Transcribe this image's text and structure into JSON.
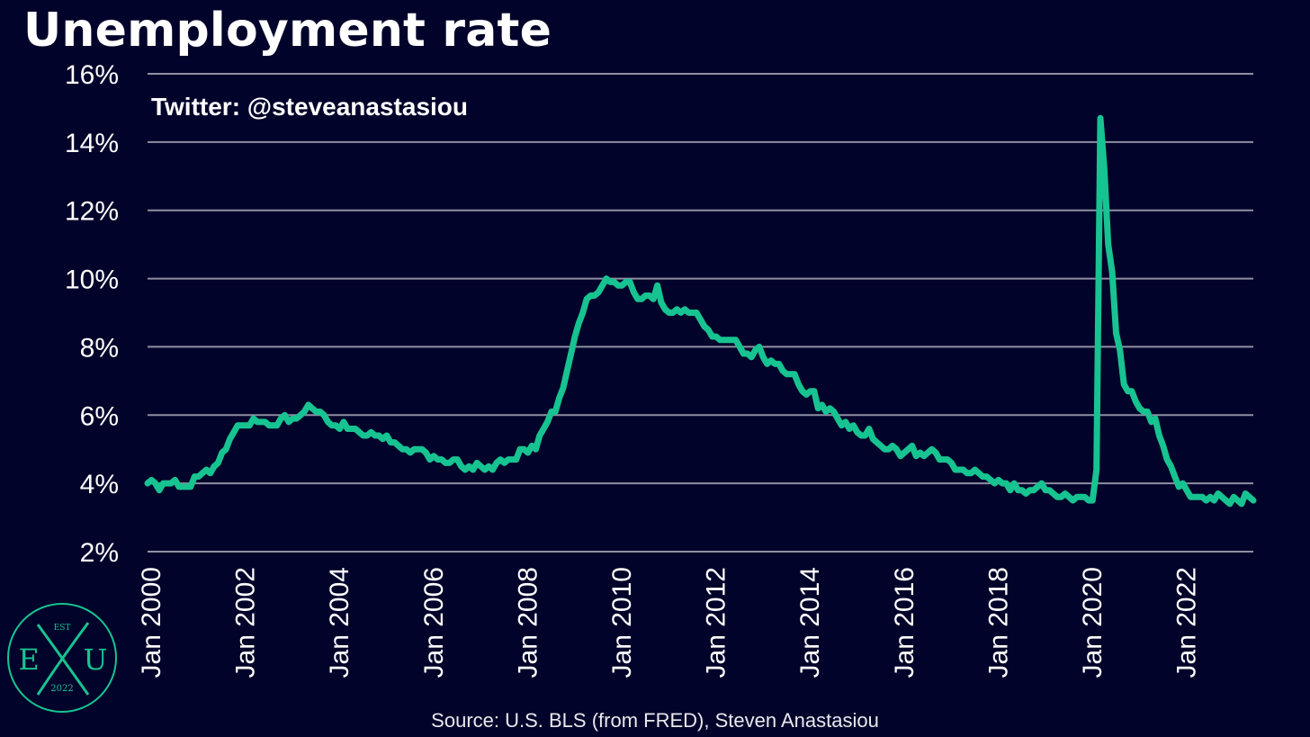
{
  "title": "Unemployment rate",
  "watermark": "Twitter: @steveanastasiou",
  "source": "Source: U.S. BLS (from FRED), Steven Anastasiou",
  "logo": {
    "top": "EST",
    "left": "E",
    "right": "U",
    "bottom": "2022",
    "color": "#17c391"
  },
  "colors": {
    "background": "#02032a",
    "line": "#17c391",
    "grid": "#8e8fa3",
    "text": "#ffffff"
  },
  "chart_data": {
    "type": "line",
    "title": "Unemployment rate",
    "xlabel": "",
    "ylabel": "",
    "x_range": [
      "Jan 2000",
      "Jun 2023"
    ],
    "ylim": [
      2,
      16
    ],
    "y_ticks": [
      "2%",
      "4%",
      "6%",
      "8%",
      "10%",
      "12%",
      "14%",
      "16%"
    ],
    "y_tick_values": [
      2,
      4,
      6,
      8,
      10,
      12,
      14,
      16
    ],
    "x_ticks": [
      "Jan 2000",
      "Jan 2002",
      "Jan 2004",
      "Jan 2006",
      "Jan 2008",
      "Jan 2010",
      "Jan 2012",
      "Jan 2014",
      "Jan 2016",
      "Jan 2018",
      "Jan 2020",
      "Jan 2022"
    ],
    "grid": "horizontal",
    "series": [
      {
        "color": "#17c391",
        "start": "Jan 2000",
        "frequency": "monthly",
        "values": [
          4.0,
          4.1,
          4.0,
          3.8,
          4.0,
          4.0,
          4.0,
          4.1,
          3.9,
          3.9,
          3.9,
          3.9,
          4.2,
          4.2,
          4.3,
          4.4,
          4.3,
          4.5,
          4.6,
          4.9,
          5.0,
          5.3,
          5.5,
          5.7,
          5.7,
          5.7,
          5.7,
          5.9,
          5.8,
          5.8,
          5.8,
          5.7,
          5.7,
          5.7,
          5.9,
          6.0,
          5.8,
          5.9,
          5.9,
          6.0,
          6.1,
          6.3,
          6.2,
          6.1,
          6.1,
          6.0,
          5.8,
          5.7,
          5.7,
          5.6,
          5.8,
          5.6,
          5.6,
          5.6,
          5.5,
          5.4,
          5.4,
          5.5,
          5.4,
          5.4,
          5.3,
          5.4,
          5.2,
          5.2,
          5.1,
          5.0,
          5.0,
          4.9,
          5.0,
          5.0,
          5.0,
          4.9,
          4.7,
          4.8,
          4.7,
          4.7,
          4.6,
          4.6,
          4.7,
          4.7,
          4.5,
          4.4,
          4.5,
          4.4,
          4.6,
          4.5,
          4.4,
          4.5,
          4.4,
          4.6,
          4.7,
          4.6,
          4.7,
          4.7,
          4.7,
          5.0,
          5.0,
          4.9,
          5.1,
          5.0,
          5.4,
          5.6,
          5.8,
          6.1,
          6.1,
          6.5,
          6.8,
          7.3,
          7.8,
          8.3,
          8.7,
          9.0,
          9.4,
          9.5,
          9.5,
          9.6,
          9.8,
          10.0,
          9.9,
          9.9,
          9.8,
          9.8,
          9.9,
          9.9,
          9.6,
          9.4,
          9.4,
          9.5,
          9.5,
          9.4,
          9.8,
          9.3,
          9.1,
          9.0,
          9.0,
          9.1,
          9.0,
          9.1,
          9.0,
          9.0,
          9.0,
          8.8,
          8.6,
          8.5,
          8.3,
          8.3,
          8.2,
          8.2,
          8.2,
          8.2,
          8.2,
          8.0,
          7.8,
          7.8,
          7.7,
          7.9,
          8.0,
          7.7,
          7.5,
          7.6,
          7.5,
          7.5,
          7.3,
          7.2,
          7.2,
          7.2,
          6.9,
          6.7,
          6.6,
          6.7,
          6.7,
          6.2,
          6.3,
          6.1,
          6.2,
          6.1,
          5.9,
          5.7,
          5.8,
          5.6,
          5.7,
          5.5,
          5.4,
          5.4,
          5.6,
          5.3,
          5.2,
          5.1,
          5.0,
          5.0,
          5.1,
          5.0,
          4.8,
          4.9,
          5.0,
          5.1,
          4.8,
          4.9,
          4.8,
          4.9,
          5.0,
          4.9,
          4.7,
          4.7,
          4.7,
          4.6,
          4.4,
          4.4,
          4.4,
          4.3,
          4.3,
          4.4,
          4.3,
          4.2,
          4.2,
          4.1,
          4.0,
          4.1,
          4.0,
          4.0,
          3.8,
          4.0,
          3.8,
          3.8,
          3.7,
          3.8,
          3.8,
          3.9,
          4.0,
          3.8,
          3.8,
          3.7,
          3.6,
          3.6,
          3.7,
          3.6,
          3.5,
          3.6,
          3.6,
          3.6,
          3.5,
          3.5,
          4.4,
          14.7,
          13.2,
          11.0,
          10.2,
          8.4,
          7.9,
          6.9,
          6.7,
          6.7,
          6.4,
          6.2,
          6.1,
          6.1,
          5.8,
          5.9,
          5.4,
          5.1,
          4.7,
          4.5,
          4.2,
          3.9,
          4.0,
          3.8,
          3.6,
          3.6,
          3.6,
          3.6,
          3.5,
          3.6,
          3.5,
          3.7,
          3.6,
          3.5,
          3.4,
          3.6,
          3.5,
          3.4,
          3.7,
          3.6,
          3.5
        ]
      }
    ]
  }
}
